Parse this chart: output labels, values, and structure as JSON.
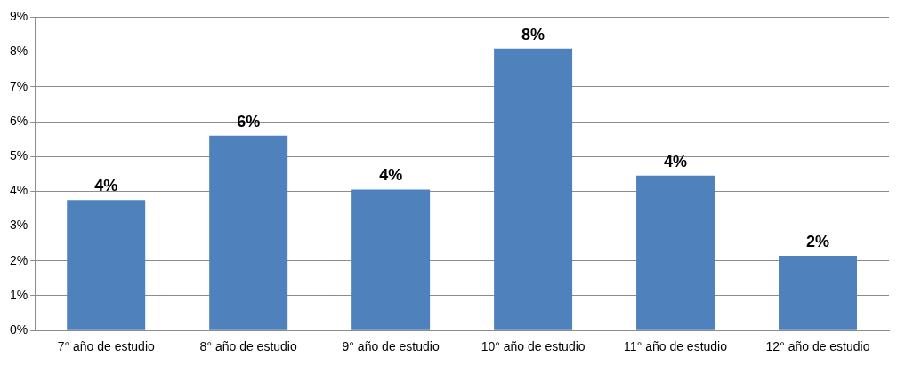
{
  "chart_data": {
    "type": "bar",
    "categories": [
      "7° año de estudio",
      "8° año de estudio",
      "9° año de estudio",
      "10° año de estudio",
      "11° año de estudio",
      "12° año de estudio"
    ],
    "values": [
      3.75,
      5.6,
      4.05,
      8.1,
      4.45,
      2.15
    ],
    "value_labels": [
      "4%",
      "6%",
      "4%",
      "8%",
      "4%",
      "2%"
    ],
    "color": "#4f81bd",
    "ylim": [
      0,
      9
    ],
    "yticks": [
      {
        "value": 0,
        "label": "0%"
      },
      {
        "value": 1,
        "label": "1%"
      },
      {
        "value": 2,
        "label": "2%"
      },
      {
        "value": 3,
        "label": "3%"
      },
      {
        "value": 4,
        "label": "4%"
      },
      {
        "value": 5,
        "label": "5%"
      },
      {
        "value": 6,
        "label": "6%"
      },
      {
        "value": 7,
        "label": "7%"
      },
      {
        "value": 8,
        "label": "8%"
      },
      {
        "value": 9,
        "label": "9%"
      }
    ],
    "grid": "y",
    "legend": false
  }
}
